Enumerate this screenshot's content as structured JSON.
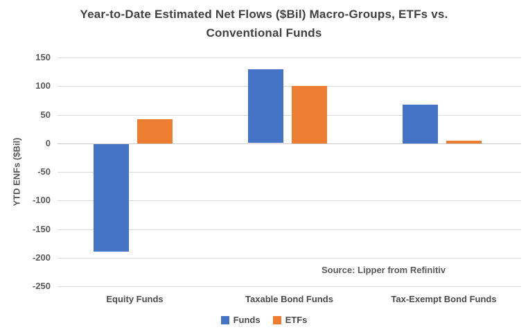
{
  "title": {
    "line1": "Year-to-Date Estimated Net Flows ($Bil) Macro-Groups, ETFs vs.",
    "line2": "Conventional Funds"
  },
  "chart_data": {
    "type": "bar",
    "title": "Year-to-Date Estimated Net Flows ($Bil) Macro-Groups, ETFs vs. Conventional Funds",
    "categories": [
      "Equity Funds",
      "Taxable Bond Funds",
      "Tax-Exempt Bond Funds"
    ],
    "series": [
      {
        "name": "Funds",
        "color": "#4472C4",
        "values": [
          -188,
          129,
          68
        ]
      },
      {
        "name": "ETFs",
        "color": "#ED7D31",
        "values": [
          42,
          100,
          5
        ]
      }
    ],
    "xlabel": "",
    "ylabel": "YTD ENFs ($Bil)",
    "ylim": [
      -250,
      150
    ],
    "ytick_step": 50,
    "ytick_labels": [
      "150",
      "100",
      "50",
      "0",
      "-50",
      "-100",
      "-150",
      "-200",
      "-250"
    ],
    "grid": "horizontal",
    "legend_position": "bottom",
    "source_note": "Source: Lipper from Refinitiv"
  },
  "colors": {
    "gridline": "#d9d9d9",
    "axis_text": "#595959",
    "title_text": "#404040",
    "funds_blue": "#4472C4",
    "etfs_orange": "#ED7D31"
  }
}
